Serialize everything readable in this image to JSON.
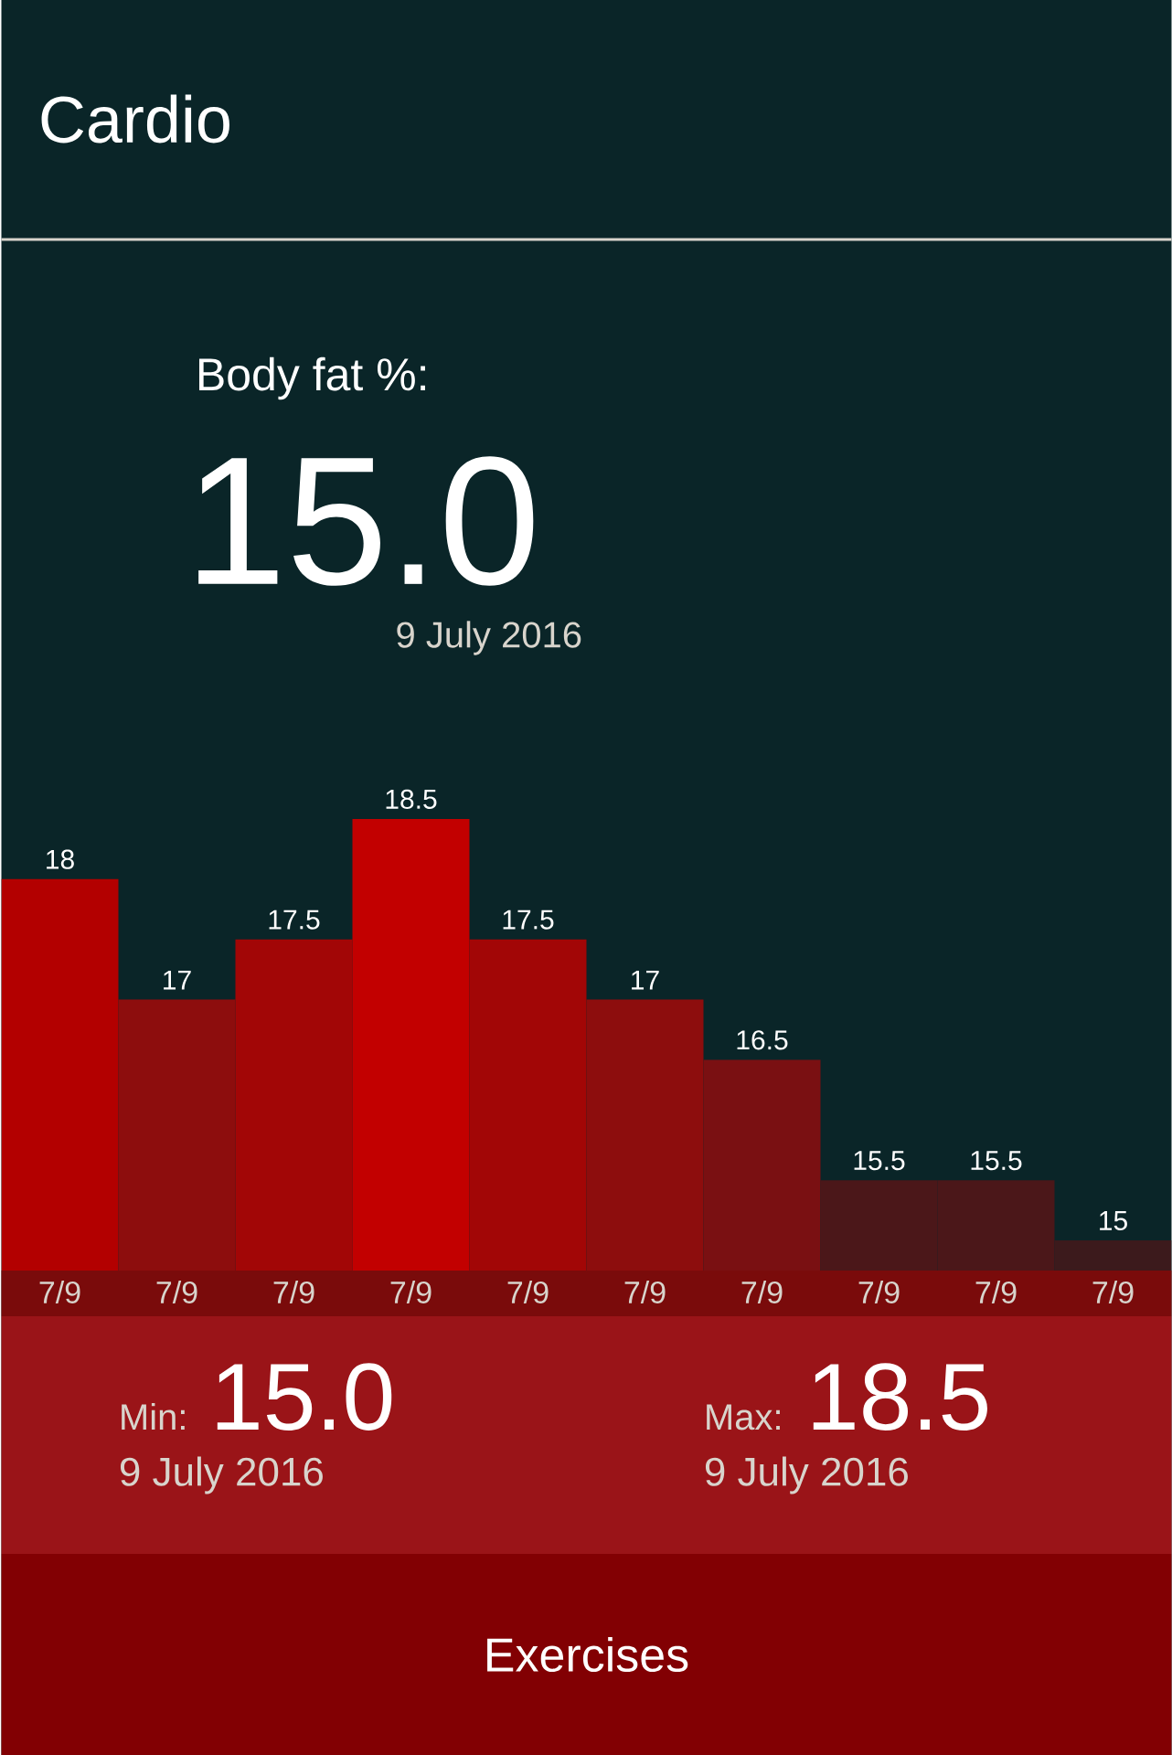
{
  "chart_data": {
    "type": "bar",
    "title": "Cardio",
    "subtitle": "Body fat %:",
    "categories": [
      "7/9",
      "7/9",
      "7/9",
      "7/9",
      "7/9",
      "7/9",
      "7/9",
      "7/9",
      "7/9",
      "7/9"
    ],
    "values": [
      18,
      17,
      17.5,
      18.5,
      17.5,
      17,
      16.5,
      15.5,
      15.5,
      15
    ],
    "colors": [
      "#b30000",
      "#8d0d0d",
      "#a20606",
      "#c20000",
      "#a20606",
      "#8d0d0d",
      "#7a1012",
      "#4b1719",
      "#4b1719",
      "#3c1a1c"
    ],
    "ylim": [
      14.75,
      18.5
    ],
    "tick_labels": "x",
    "data_labels": true,
    "annotations": [
      "15.0",
      "9 July 2016",
      "Min:",
      "15.0",
      "9 July 2016",
      "Max:",
      "18.5",
      "9 July 2016",
      "Exercises"
    ]
  }
}
